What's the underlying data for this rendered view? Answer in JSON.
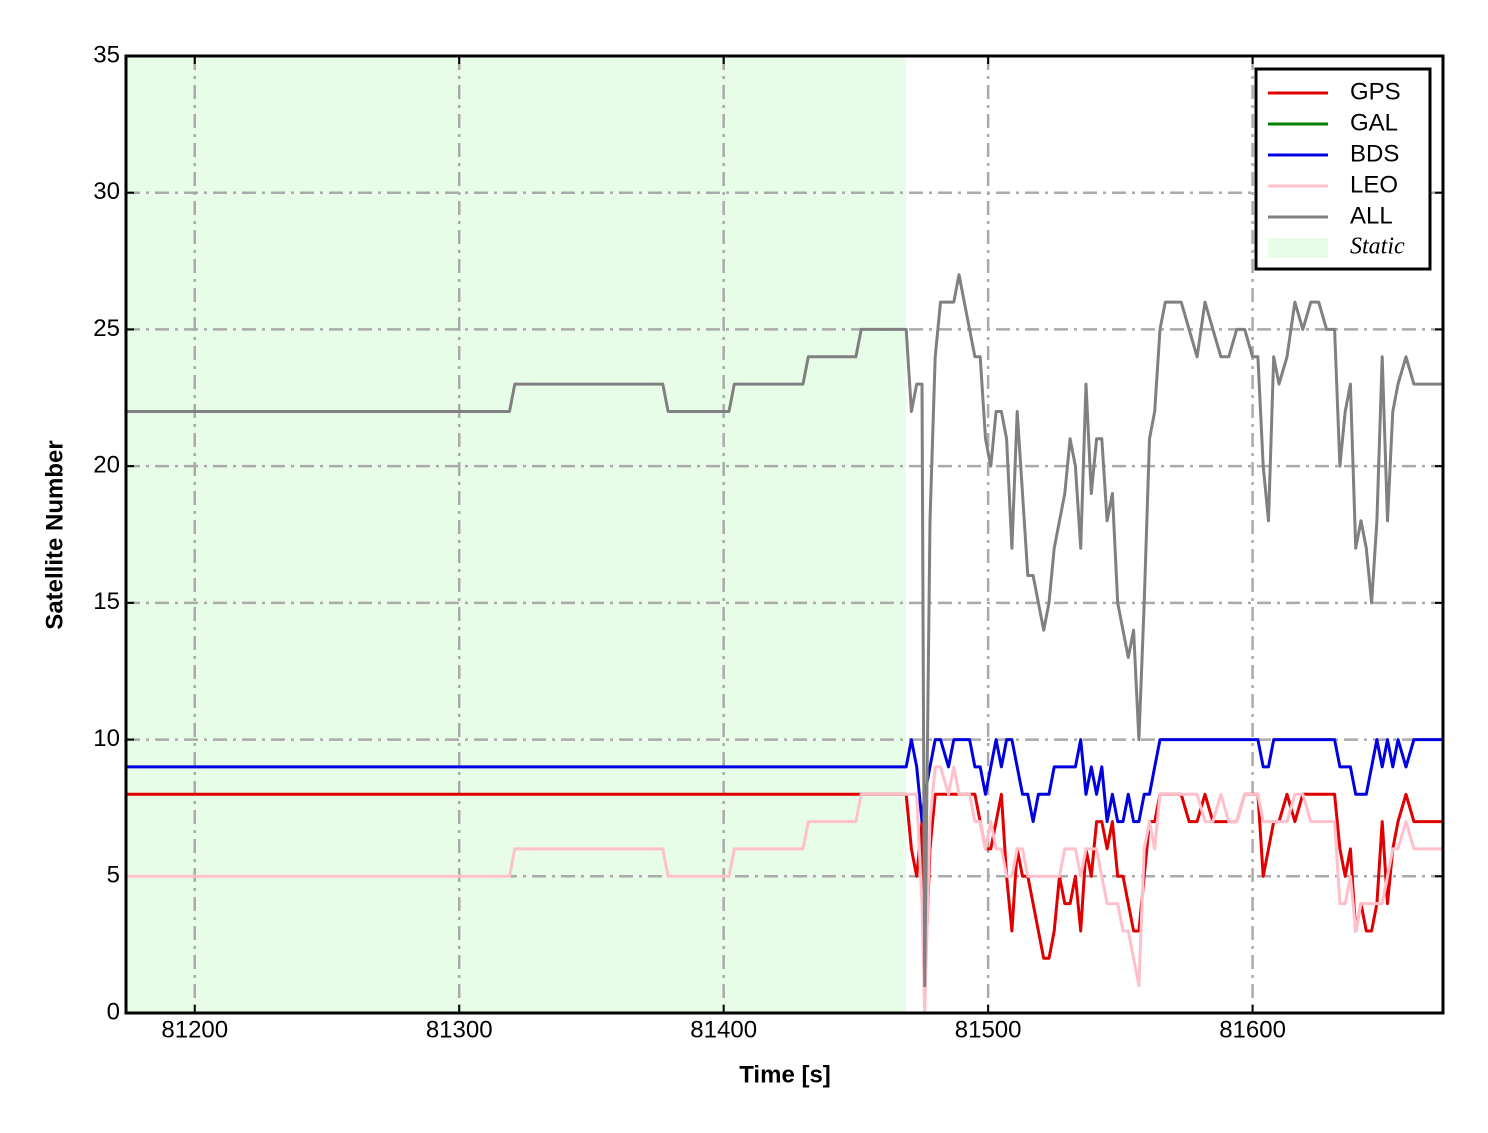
{
  "chart_data": {
    "type": "line",
    "xlabel": "Time [s]",
    "ylabel": "Satellite Number",
    "xlim": [
      81174,
      81672
    ],
    "xticks": [
      81200,
      81300,
      81400,
      81500,
      81600
    ],
    "ylim": [
      0,
      35
    ],
    "yticks": [
      0,
      5,
      10,
      15,
      20,
      25,
      30,
      35
    ],
    "grid": true,
    "legend": "upper right",
    "span": {
      "label": "Static",
      "xlim": [
        81174,
        81469
      ],
      "color": "#e8fde8"
    },
    "x": [
      81174,
      81319,
      81321,
      81377,
      81379,
      81402,
      81404,
      81430,
      81432,
      81450,
      81452,
      81469,
      81471,
      81473,
      81475,
      81476,
      81478,
      81480,
      81482,
      81485,
      81487,
      81489,
      81491,
      81493,
      81495,
      81497,
      81499,
      81501,
      81503,
      81505,
      81507,
      81509,
      81511,
      81513,
      81515,
      81517,
      81519,
      81521,
      81523,
      81525,
      81527,
      81529,
      81531,
      81533,
      81535,
      81537,
      81539,
      81541,
      81543,
      81545,
      81547,
      81549,
      81551,
      81553,
      81555,
      81557,
      81559,
      81561,
      81563,
      81565,
      81567,
      81570,
      81573,
      81576,
      81579,
      81582,
      81585,
      81588,
      81591,
      81594,
      81597,
      81600,
      81602,
      81604,
      81606,
      81608,
      81610,
      81613,
      81616,
      81619,
      81622,
      81625,
      81628,
      81631,
      81633,
      81635,
      81637,
      81639,
      81641,
      81643,
      81645,
      81647,
      81649,
      81651,
      81653,
      81655,
      81658,
      81661,
      81664,
      81672
    ],
    "series": [
      {
        "name": "GPS",
        "color": "#e00000",
        "values": [
          8,
          8,
          8,
          8,
          8,
          8,
          8,
          8,
          8,
          8,
          8,
          8,
          6,
          5,
          7,
          1,
          6,
          8,
          8,
          8,
          8,
          8,
          8,
          8,
          8,
          7,
          6,
          6,
          7,
          8,
          5,
          3,
          6,
          5,
          5,
          4,
          3,
          2,
          2,
          3,
          5,
          4,
          4,
          5,
          3,
          6,
          5,
          7,
          7,
          6,
          7,
          5,
          5,
          4,
          3,
          3,
          5,
          7,
          7,
          8,
          8,
          8,
          8,
          7,
          7,
          8,
          7,
          7,
          7,
          7,
          8,
          8,
          8,
          5,
          6,
          7,
          7,
          8,
          7,
          8,
          8,
          8,
          8,
          8,
          6,
          5,
          6,
          3,
          4,
          3,
          3,
          4,
          7,
          4,
          6,
          7,
          8,
          7,
          7,
          7
        ]
      },
      {
        "name": "GAL",
        "color": "#008000",
        "values": [
          0,
          0,
          0,
          0,
          0,
          0,
          0,
          0,
          0,
          0,
          0,
          0,
          0,
          0,
          0,
          0,
          0,
          0,
          0,
          0,
          0,
          0,
          0,
          0,
          0,
          0,
          0,
          0,
          0,
          0,
          0,
          0,
          0,
          0,
          0,
          0,
          0,
          0,
          0,
          0,
          0,
          0,
          0,
          0,
          0,
          0,
          0,
          0,
          0,
          0,
          0,
          0,
          0,
          0,
          0,
          0,
          0,
          0,
          0,
          0,
          0,
          0,
          0,
          0,
          0,
          0,
          0,
          0,
          0,
          0,
          0,
          0,
          0,
          0,
          0,
          0,
          0,
          0,
          0,
          0,
          0,
          0,
          0,
          0,
          0,
          0,
          0,
          0,
          0,
          0,
          0,
          0,
          0,
          0,
          0,
          0,
          0,
          0,
          0,
          0
        ]
      },
      {
        "name": "BDS",
        "color": "#0000e0",
        "values": [
          9,
          9,
          9,
          9,
          9,
          9,
          9,
          9,
          9,
          9,
          9,
          9,
          10,
          9,
          7,
          8,
          9,
          10,
          10,
          9,
          10,
          10,
          10,
          10,
          9,
          9,
          8,
          9,
          10,
          9,
          10,
          10,
          9,
          8,
          8,
          7,
          8,
          8,
          8,
          9,
          9,
          9,
          9,
          9,
          10,
          8,
          9,
          8,
          9,
          7,
          8,
          7,
          7,
          8,
          7,
          7,
          8,
          8,
          9,
          10,
          10,
          10,
          10,
          10,
          10,
          10,
          10,
          10,
          10,
          10,
          10,
          10,
          10,
          9,
          9,
          10,
          10,
          10,
          10,
          10,
          10,
          10,
          10,
          10,
          9,
          9,
          9,
          8,
          8,
          8,
          9,
          10,
          9,
          10,
          9,
          10,
          9,
          10,
          10,
          10
        ]
      },
      {
        "name": "LEO",
        "color": "#ffc0cb",
        "values": [
          5,
          5,
          6,
          6,
          5,
          5,
          6,
          6,
          7,
          7,
          8,
          8,
          8,
          8,
          4,
          0,
          7,
          9,
          9,
          8,
          9,
          8,
          8,
          8,
          7,
          7,
          6,
          7,
          6,
          6,
          5,
          5,
          6,
          6,
          5,
          5,
          5,
          5,
          5,
          5,
          5,
          6,
          6,
          6,
          5,
          6,
          6,
          6,
          5,
          4,
          4,
          4,
          3,
          3,
          2,
          1,
          6,
          7,
          6,
          8,
          8,
          8,
          8,
          8,
          8,
          7,
          7,
          8,
          7,
          7,
          8,
          8,
          8,
          7,
          7,
          7,
          7,
          7,
          8,
          8,
          7,
          7,
          7,
          7,
          4,
          4,
          5,
          3,
          4,
          4,
          4,
          4,
          4,
          5,
          6,
          6,
          7,
          6,
          6,
          6
        ]
      },
      {
        "name": "ALL",
        "color": "#808080",
        "values": [
          22,
          22,
          23,
          23,
          22,
          22,
          23,
          23,
          24,
          24,
          25,
          25,
          22,
          23,
          23,
          1,
          18,
          24,
          26,
          26,
          26,
          27,
          26,
          25,
          24,
          24,
          21,
          20,
          22,
          22,
          21,
          17,
          22,
          19,
          16,
          16,
          15,
          14,
          15,
          17,
          18,
          19,
          21,
          20,
          17,
          23,
          19,
          21,
          21,
          18,
          19,
          15,
          14,
          13,
          14,
          10,
          15,
          21,
          22,
          25,
          26,
          26,
          26,
          25,
          24,
          26,
          25,
          24,
          24,
          25,
          25,
          24,
          24,
          20,
          18,
          24,
          23,
          24,
          26,
          25,
          26,
          26,
          25,
          25,
          20,
          22,
          23,
          17,
          18,
          17,
          15,
          18,
          24,
          18,
          22,
          23,
          24,
          23,
          23,
          23
        ]
      }
    ]
  }
}
